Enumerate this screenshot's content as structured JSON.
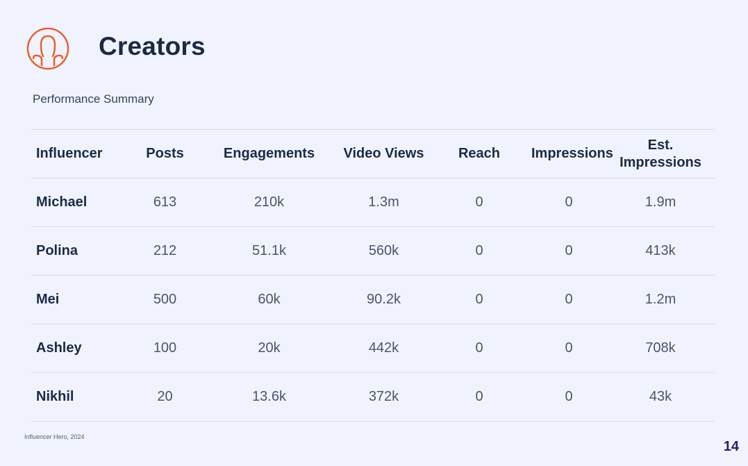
{
  "header": {
    "icon": "person-outline-icon",
    "title": "Creators",
    "accent_color": "#e8602c"
  },
  "subtitle": "Performance Summary",
  "table": {
    "columns": [
      "Influencer",
      "Posts",
      "Engagements",
      "Video Views",
      "Reach",
      "Impressions",
      "Est. Impressions"
    ],
    "rows": [
      {
        "name": "Michael",
        "posts": "613",
        "engagements": "210k",
        "video_views": "1.3m",
        "reach": "0",
        "impressions": "0",
        "est_impressions": "1.9m"
      },
      {
        "name": "Polina",
        "posts": "212",
        "engagements": "51.1k",
        "video_views": "560k",
        "reach": "0",
        "impressions": "0",
        "est_impressions": "413k"
      },
      {
        "name": "Mei",
        "posts": "500",
        "engagements": "60k",
        "video_views": "90.2k",
        "reach": "0",
        "impressions": "0",
        "est_impressions": "1.2m"
      },
      {
        "name": "Ashley",
        "posts": "100",
        "engagements": "20k",
        "video_views": "442k",
        "reach": "0",
        "impressions": "0",
        "est_impressions": "708k"
      },
      {
        "name": "Nikhil",
        "posts": "20",
        "engagements": "13.6k",
        "video_views": "372k",
        "reach": "0",
        "impressions": "0",
        "est_impressions": "43k"
      }
    ]
  },
  "footer": {
    "note": "Influencer Hero, 2024",
    "page_number": "14"
  }
}
